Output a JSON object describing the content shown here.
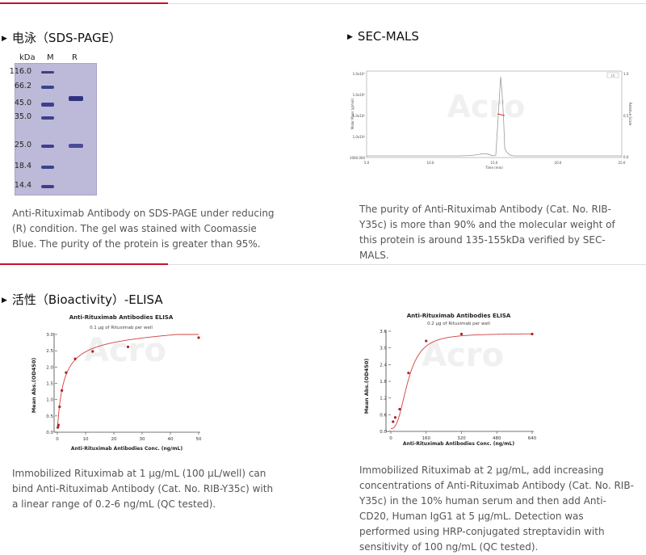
{
  "sds": {
    "title": "电泳（SDS-PAGE）",
    "gel_header": {
      "kda": "kDa",
      "m": "M",
      "r": "R"
    },
    "markers": [
      "116.0",
      "66.2",
      "45.0",
      "35.0",
      "25.0",
      "18.4",
      "14.4"
    ],
    "description": "Anti-Rituximab Antibody on SDS-PAGE under reducing (R) condition. The gel was stained with Coomassie Blue. The purity of the protein is greater than 95%."
  },
  "sec": {
    "title": "SEC-MALS",
    "description": "The purity of Anti-Rituximab Antibody (Cat. No. RIB-Y35c) is more than 90% and the molecular weight of this protein is around 135-155kDa verified by SEC-MALS.",
    "chart_data": {
      "type": "line",
      "xlabel": "Time (min)",
      "ylabel_left": "Molar Mass (g/mol)",
      "ylabel_right": "Relative Scale",
      "x_ticks": [
        "5.0",
        "10.0",
        "15.0",
        "20.0",
        "25.0"
      ],
      "y_left_ticks": [
        "1000.000",
        "1.0x10⁴",
        "1.0x10⁵",
        "1.0x10⁶",
        "1.0x10⁷"
      ],
      "y_right_ticks": [
        "0.0",
        "0.5",
        "1.0"
      ],
      "legend": "LS",
      "xlim": [
        5,
        25
      ],
      "peak_x": 15.2
    }
  },
  "elisa": {
    "title": "活性（Bioactivity）-ELISA",
    "left": {
      "description": "Immobilized Rituximab at 1 μg/mL (100 μL/well) can bind Anti-Rituximab Antibody (Cat. No. RIB-Y35c) with a linear range of 0.2-6 ng/mL (QC tested).",
      "chart_data": {
        "type": "scatter",
        "title": "Anti-Rituximab Antibodies ELISA",
        "subtitle": "0.1 μg of Rituximab per well",
        "xlabel": "Anti-Rituximab Antibodies Conc. (ng/mL)",
        "ylabel": "Mean Abs.(OD450)",
        "xlim": [
          0,
          50
        ],
        "ylim": [
          0,
          3
        ],
        "x_ticks": [
          "0",
          "10",
          "20",
          "30",
          "40",
          "50"
        ],
        "y_ticks": [
          "0.0",
          "0.5",
          "1.0",
          "1.5",
          "2.0",
          "2.5",
          "3.0"
        ],
        "x": [
          0.2,
          0.4,
          0.8,
          1.6,
          3.1,
          6.3,
          12.5,
          25,
          50
        ],
        "y": [
          0.15,
          0.22,
          0.78,
          1.28,
          1.83,
          2.25,
          2.48,
          2.62,
          2.9
        ]
      }
    },
    "right": {
      "description": "Immobilized Rituximab at 2 μg/mL, add increasing concentrations of Anti-Rituximab Antibody (Cat. No. RIB-Y35c) in the 10% human serum and then add Anti-CD20, Human IgG1 at 5 μg/mL. Detection was performed using HRP-conjugated streptavidin with sensitivity of 100 ng/mL (QC tested).",
      "chart_data": {
        "type": "scatter",
        "title": "Anti-Rituximab Antibodies ELISA",
        "subtitle": "0.2 μg of Rituximab per well",
        "xlabel": "Anti-Rituximab Antibodies Conc. (ng/mL)",
        "ylabel": "Mean Abs.(OD450)",
        "xlim": [
          0,
          640
        ],
        "ylim": [
          0,
          3.6
        ],
        "x_ticks": [
          "0",
          "160",
          "320",
          "480",
          "640"
        ],
        "y_ticks": [
          "0.0",
          "0.6",
          "1.2",
          "1.8",
          "2.4",
          "3.0",
          "3.6"
        ],
        "x": [
          10,
          20,
          40,
          80,
          160,
          320,
          640
        ],
        "y": [
          0.35,
          0.5,
          0.8,
          2.1,
          3.25,
          3.5,
          3.5
        ]
      }
    }
  }
}
